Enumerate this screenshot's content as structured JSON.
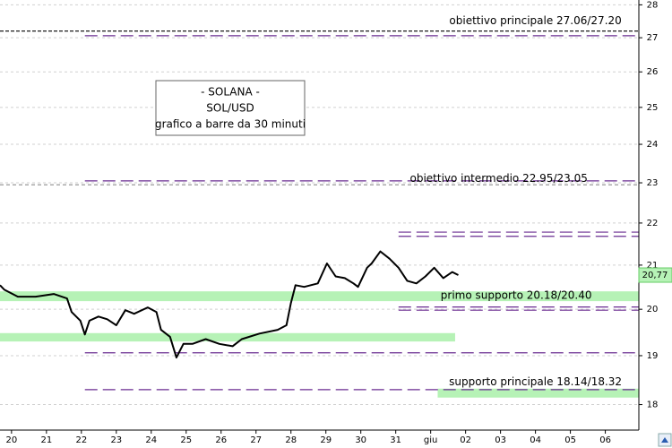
{
  "chart_data": {
    "type": "line",
    "title_lines": [
      "- SOLANA -",
      "SOL/USD",
      "grafico a barre da 30 minuti"
    ],
    "log_scale": true,
    "grid": true,
    "xlim": [
      -0.33,
      17.96
    ],
    "xticks": [
      {
        "value": 0,
        "label": "20"
      },
      {
        "value": 1,
        "label": "21"
      },
      {
        "value": 2,
        "label": "22"
      },
      {
        "value": 3,
        "label": "23"
      },
      {
        "value": 4,
        "label": "24"
      },
      {
        "value": 5,
        "label": "25"
      },
      {
        "value": 6,
        "label": "26"
      },
      {
        "value": 7,
        "label": "27"
      },
      {
        "value": 8,
        "label": "28"
      },
      {
        "value": 9,
        "label": "29"
      },
      {
        "value": 10,
        "label": "30"
      },
      {
        "value": 11,
        "label": "31"
      },
      {
        "value": 12,
        "label": "giu"
      },
      {
        "value": 13,
        "label": "02"
      },
      {
        "value": 14,
        "label": "03"
      },
      {
        "value": 15,
        "label": "04"
      },
      {
        "value": 16,
        "label": "05"
      },
      {
        "value": 17,
        "label": "06"
      }
    ],
    "ylim": [
      17.5,
      28.15
    ],
    "yticks": [
      18,
      19,
      20,
      21,
      22,
      23,
      24,
      25,
      26,
      27,
      28
    ],
    "series": [
      {
        "name": "SOL/USD",
        "color": "#000000",
        "x": [
          -0.33,
          -0.21,
          0.18,
          0.69,
          1.21,
          1.59,
          1.72,
          1.97,
          2.1,
          2.23,
          2.49,
          2.74,
          3.0,
          3.26,
          3.51,
          3.9,
          4.15,
          4.28,
          4.54,
          4.72,
          4.92,
          5.18,
          5.56,
          5.95,
          6.33,
          6.59,
          7.1,
          7.62,
          7.87,
          8.0,
          8.13,
          8.38,
          8.77,
          9.03,
          9.28,
          9.54,
          9.79,
          9.92,
          10.18,
          10.31,
          10.56,
          10.82,
          11.08,
          11.33,
          11.59,
          11.85,
          12.1,
          12.36,
          12.62,
          12.79
        ],
        "values": [
          20.54,
          20.44,
          20.28,
          20.28,
          20.34,
          20.24,
          19.94,
          19.75,
          19.45,
          19.75,
          19.84,
          19.78,
          19.65,
          19.98,
          19.9,
          20.04,
          19.94,
          19.55,
          19.4,
          18.96,
          19.25,
          19.25,
          19.35,
          19.25,
          19.2,
          19.35,
          19.47,
          19.55,
          19.65,
          20.14,
          20.54,
          20.5,
          20.58,
          21.04,
          20.74,
          20.7,
          20.58,
          20.5,
          20.94,
          21.04,
          21.32,
          21.15,
          20.94,
          20.64,
          20.58,
          20.74,
          20.94,
          20.7,
          20.84,
          20.77
        ]
      }
    ],
    "last_value": {
      "value": 20.77,
      "label": "20,77"
    },
    "bands": [
      {
        "low": 20.18,
        "high": 20.4,
        "from": -0.33,
        "to": 17.96,
        "color": "#b6f2b6"
      },
      {
        "low": 19.3,
        "high": 19.48,
        "from": -0.33,
        "to": 12.7,
        "color": "#b6f2b6"
      },
      {
        "low": 18.14,
        "high": 18.32,
        "from": 12.2,
        "to": 17.96,
        "color": "#b6f2b6"
      }
    ],
    "lines": [
      {
        "value": 27.2,
        "from": -0.33,
        "color": "#000000",
        "dash": "4 2"
      },
      {
        "value": 27.06,
        "from": 2.1,
        "color": "#6a2c91",
        "dash": "14 6"
      },
      {
        "value": 23.05,
        "from": 2.1,
        "color": "#6a2c91",
        "dash": "14 6"
      },
      {
        "value": 22.95,
        "from": -0.33,
        "color": "#999999",
        "dash": "4 3"
      },
      {
        "value": 21.78,
        "from": 11.08,
        "color": "#6a2c91",
        "dash": "14 6"
      },
      {
        "value": 21.68,
        "from": 11.08,
        "color": "#6a2c91",
        "dash": "14 6"
      },
      {
        "value": 20.05,
        "from": 11.08,
        "color": "#6a2c91",
        "dash": "14 6"
      },
      {
        "value": 19.98,
        "from": 11.08,
        "color": "#6a2c91",
        "dash": "14 6"
      },
      {
        "value": 19.06,
        "from": 2.1,
        "color": "#6a2c91",
        "dash": "14 6"
      },
      {
        "value": 18.3,
        "from": 2.1,
        "color": "#6a2c91",
        "dash": "14 6"
      }
    ],
    "annotations": [
      {
        "text": "obiettivo principale 27.06/27.20",
        "x": 15.0,
        "y": 27.5
      },
      {
        "text": "obiettivo intermedio 22.95/23.05",
        "x": 13.95,
        "y": 23.1
      },
      {
        "text": "primo supporto 20.18/20.40",
        "x": 14.45,
        "y": 20.3
      },
      {
        "text": "supporto principale 18.14/18.32",
        "x": 15.0,
        "y": 18.45
      }
    ]
  }
}
